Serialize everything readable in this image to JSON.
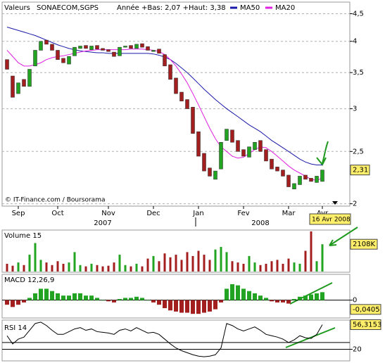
{
  "header": {
    "label": "Valeurs",
    "symbol": "SONAECOM,SGPS",
    "range": "Année +Bas: 2,07 +Haut: 3,38"
  },
  "chart_data": [
    {
      "type": "candlestick",
      "categories": [
        null,
        null,
        "Sep",
        null,
        null,
        null,
        null,
        null,
        null,
        "Oct",
        null,
        null,
        null,
        null,
        null,
        null,
        null,
        null,
        "Nov",
        null,
        null,
        null,
        null,
        null,
        null,
        null,
        "Dec",
        null,
        null,
        null,
        null,
        null,
        null,
        null,
        "Jan",
        null,
        null,
        null,
        null,
        null,
        null,
        null,
        "Fev",
        null,
        null,
        null,
        null,
        null,
        null,
        null,
        "Mar",
        null,
        null,
        null,
        null,
        null,
        "Avr"
      ],
      "years": [
        "2007",
        "2008"
      ],
      "open": [
        3.7,
        3.45,
        3.2,
        3.4,
        3.3,
        3.6,
        3.85,
        4.02,
        3.95,
        3.85,
        3.72,
        3.63,
        3.76,
        3.88,
        3.93,
        3.86,
        3.93,
        3.88,
        3.86,
        3.82,
        3.76,
        3.9,
        3.93,
        3.88,
        3.96,
        3.91,
        3.83,
        3.87,
        3.78,
        3.62,
        3.42,
        3.22,
        3.12,
        3.02,
        2.72,
        2.48,
        2.33,
        2.22,
        2.32,
        2.62,
        2.74,
        2.62,
        2.52,
        2.44,
        2.52,
        2.62,
        2.52,
        2.42,
        2.34,
        2.31,
        2.26,
        2.13,
        2.17,
        2.26,
        2.23,
        2.19,
        2.2
      ],
      "close": [
        3.55,
        3.15,
        3.35,
        3.3,
        3.55,
        3.85,
        4.0,
        3.95,
        3.85,
        3.7,
        3.65,
        3.75,
        3.9,
        3.92,
        3.88,
        3.92,
        3.87,
        3.85,
        3.83,
        3.75,
        3.9,
        3.92,
        3.88,
        3.95,
        3.9,
        3.85,
        3.85,
        3.8,
        3.6,
        3.4,
        3.2,
        3.1,
        3.0,
        2.7,
        2.45,
        2.3,
        2.25,
        2.3,
        2.6,
        2.75,
        2.6,
        2.5,
        2.45,
        2.55,
        2.6,
        2.5,
        2.4,
        2.32,
        2.3,
        2.25,
        2.15,
        2.18,
        2.25,
        2.22,
        2.2,
        2.25,
        2.31
      ],
      "up_color": "#22a322",
      "down_color": "#a31f1f",
      "series": [
        {
          "name": "MA50",
          "color": "#1a1aa8",
          "values": [
            4.25,
            4.22,
            4.19,
            4.16,
            4.13,
            4.1,
            4.06,
            4.02,
            3.98,
            3.94,
            3.91,
            3.88,
            3.86,
            3.84,
            3.83,
            3.82,
            3.81,
            3.81,
            3.8,
            3.8,
            3.8,
            3.8,
            3.8,
            3.8,
            3.8,
            3.8,
            3.79,
            3.77,
            3.74,
            3.7,
            3.64,
            3.57,
            3.5,
            3.42,
            3.34,
            3.26,
            3.19,
            3.12,
            3.06,
            3.0,
            2.95,
            2.9,
            2.85,
            2.8,
            2.76,
            2.72,
            2.67,
            2.62,
            2.58,
            2.54,
            2.5,
            2.46,
            2.42,
            2.39,
            2.37,
            2.36,
            2.36
          ]
        },
        {
          "name": "MA20",
          "color": "#e020e0",
          "values": [
            3.85,
            3.75,
            3.65,
            3.6,
            3.6,
            3.62,
            3.65,
            3.7,
            3.73,
            3.75,
            3.76,
            3.78,
            3.8,
            3.82,
            3.84,
            3.85,
            3.86,
            3.86,
            3.86,
            3.86,
            3.86,
            3.86,
            3.87,
            3.87,
            3.87,
            3.86,
            3.85,
            3.83,
            3.78,
            3.7,
            3.6,
            3.48,
            3.35,
            3.2,
            3.05,
            2.9,
            2.76,
            2.64,
            2.55,
            2.5,
            2.45,
            2.43,
            2.44,
            2.48,
            2.52,
            2.55,
            2.54,
            2.5,
            2.45,
            2.4,
            2.35,
            2.31,
            2.28,
            2.25,
            2.22,
            2.21,
            2.23
          ]
        }
      ],
      "ylim": [
        1.98,
        4.7
      ],
      "log_scale": true,
      "grid": true,
      "yticks": [
        2,
        {
          "value": 2.5,
          "label": "2,5"
        },
        3,
        {
          "value": 3.5,
          "label": "3,5"
        },
        4,
        {
          "value": 4.5,
          "label": "4,5"
        }
      ],
      "current": {
        "value": 2.31,
        "label": "2,31"
      },
      "date_label": "16 Avr 2008",
      "credit": "© IT-Finance.com / Boursorama"
    },
    {
      "type": "bar",
      "title": "Volume 15",
      "values": [
        600,
        450,
        700,
        500,
        1300,
        2200,
        900,
        700,
        500,
        800,
        600,
        700,
        1500,
        500,
        400,
        600,
        500,
        400,
        450,
        700,
        1300,
        500,
        400,
        600,
        400,
        1000,
        1200,
        800,
        1400,
        1100,
        1300,
        900,
        1500,
        1200,
        1600,
        1300,
        900,
        1700,
        1900,
        1500,
        800,
        700,
        600,
        1200,
        700,
        500,
        600,
        800,
        900,
        600,
        1000,
        700,
        600,
        1600,
        3100,
        800,
        2108
      ],
      "ylim": [
        0,
        3150
      ],
      "current": {
        "value": 2108,
        "label": "2108K"
      }
    },
    {
      "type": "bar",
      "title": "MACD 12,26,9",
      "values": [
        -0.02,
        -0.03,
        -0.02,
        -0.01,
        0.01,
        0.03,
        0.05,
        0.05,
        0.04,
        0.03,
        0.02,
        0.02,
        0.03,
        0.03,
        0.02,
        0.02,
        0.01,
        0.0,
        -0.005,
        -0.01,
        0.005,
        0.01,
        0.01,
        0.015,
        0.01,
        0.0,
        -0.01,
        -0.02,
        -0.035,
        -0.045,
        -0.05,
        -0.055,
        -0.055,
        -0.06,
        -0.06,
        -0.055,
        -0.05,
        -0.04,
        -0.01,
        0.05,
        0.07,
        0.065,
        0.05,
        0.04,
        0.03,
        0.02,
        0.01,
        -0.005,
        -0.01,
        -0.01,
        -0.015,
        0.005,
        0.015,
        0.02,
        0.025,
        0.03,
        0.035
      ],
      "ylim": [
        -0.075,
        0.11
      ],
      "yticks": [
        0
      ],
      "current": {
        "value": -0.0405,
        "label": "-0,0405"
      }
    },
    {
      "type": "line",
      "title": "RSI 14",
      "values": [
        40,
        28,
        35,
        38,
        48,
        58,
        60,
        55,
        48,
        42,
        42,
        46,
        50,
        52,
        48,
        50,
        46,
        45,
        44,
        42,
        48,
        50,
        47,
        52,
        48,
        44,
        45,
        42,
        35,
        28,
        22,
        18,
        15,
        12,
        10,
        9,
        10,
        12,
        22,
        58,
        55,
        50,
        47,
        50,
        53,
        48,
        42,
        40,
        38,
        35,
        30,
        34,
        40,
        37,
        36,
        42,
        56.3153
      ],
      "ylim": [
        4,
        62
      ],
      "yticks": [
        20
      ],
      "reference_lines": [
        30
      ],
      "color": "#000000",
      "current": {
        "value": 56.3153,
        "label": "56,3153"
      }
    }
  ]
}
